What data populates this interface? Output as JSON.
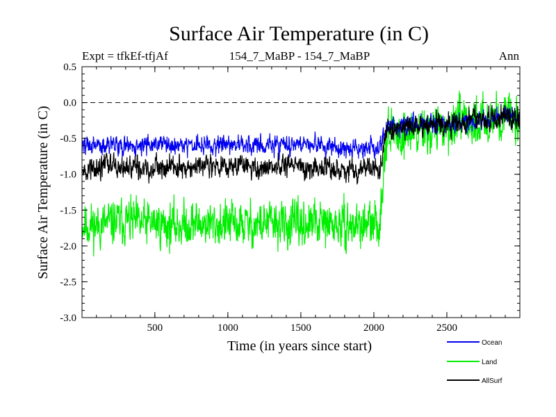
{
  "chart_data": {
    "type": "line",
    "title": "Surface Air Temperature (in C)",
    "subtitle_left": "Expt = tfkEf-tfjAf",
    "subtitle_center": "154_7_MaBP - 154_7_MaBP",
    "subtitle_right": "Ann",
    "xlabel": "Time (in years since start)",
    "ylabel": "Surface Air Temperature (in C)",
    "xlim": [
      1,
      3000
    ],
    "ylim": [
      -3.0,
      0.5
    ],
    "x_ticks": [
      500,
      1000,
      1500,
      2000,
      2500
    ],
    "x_tick_labels": [
      "500",
      "1000",
      "1500",
      "2000",
      "2500"
    ],
    "y_ticks": [
      0.5,
      0.0,
      -0.5,
      -1.0,
      -1.5,
      -2.0,
      -2.5,
      -3.0
    ],
    "y_tick_labels": [
      "0.5",
      "0.0",
      "-0.5",
      "-1.0",
      "-1.5",
      "-2.0",
      "-2.5",
      "-3.0"
    ],
    "reference_line_y": 0.0,
    "legend_position": "bottom-right",
    "series": [
      {
        "name": "Land",
        "color": "#00ee00",
        "x": [
          1,
          100,
          200,
          300,
          400,
          500,
          600,
          700,
          800,
          900,
          1000,
          1100,
          1200,
          1300,
          1400,
          1500,
          1600,
          1700,
          1800,
          1900,
          2000,
          2040,
          2060,
          2080,
          2100,
          2200,
          2300,
          2400,
          2500,
          2600,
          2700,
          2800,
          2900,
          3000
        ],
        "values": [
          -1.7,
          -1.72,
          -1.68,
          -1.65,
          -1.7,
          -1.68,
          -1.72,
          -1.7,
          -1.68,
          -1.7,
          -1.69,
          -1.71,
          -1.7,
          -1.68,
          -1.72,
          -1.7,
          -1.69,
          -1.71,
          -1.73,
          -1.7,
          -1.72,
          -1.7,
          -1.1,
          -0.5,
          -0.45,
          -0.45,
          -0.4,
          -0.38,
          -0.35,
          -0.3,
          -0.28,
          -0.22,
          -0.2,
          -0.25
        ],
        "noise_amplitude": 0.3
      },
      {
        "name": "Ocean",
        "color": "#0000ee",
        "x": [
          1,
          100,
          200,
          300,
          400,
          500,
          600,
          700,
          800,
          900,
          1000,
          1100,
          1200,
          1300,
          1400,
          1500,
          1600,
          1700,
          1800,
          1900,
          2000,
          2040,
          2060,
          2080,
          2100,
          2200,
          2300,
          2400,
          2500,
          2600,
          2700,
          2800,
          2900,
          3000
        ],
        "values": [
          -0.62,
          -0.6,
          -0.58,
          -0.6,
          -0.61,
          -0.6,
          -0.59,
          -0.6,
          -0.58,
          -0.61,
          -0.6,
          -0.59,
          -0.61,
          -0.6,
          -0.58,
          -0.6,
          -0.61,
          -0.62,
          -0.64,
          -0.63,
          -0.65,
          -0.64,
          -0.5,
          -0.36,
          -0.35,
          -0.33,
          -0.3,
          -0.29,
          -0.28,
          -0.26,
          -0.24,
          -0.22,
          -0.2,
          -0.22
        ],
        "noise_amplitude": 0.13
      },
      {
        "name": "AllSurf",
        "color": "#000000",
        "x": [
          1,
          100,
          200,
          300,
          400,
          500,
          600,
          700,
          800,
          900,
          1000,
          1100,
          1200,
          1300,
          1400,
          1500,
          1600,
          1700,
          1800,
          1900,
          2000,
          2040,
          2060,
          2080,
          2100,
          2200,
          2300,
          2400,
          2500,
          2600,
          2700,
          2800,
          2900,
          3000
        ],
        "values": [
          -0.92,
          -0.9,
          -0.88,
          -0.9,
          -0.91,
          -0.9,
          -0.89,
          -0.9,
          -0.88,
          -0.91,
          -0.9,
          -0.89,
          -0.91,
          -0.92,
          -0.9,
          -0.91,
          -0.92,
          -0.93,
          -0.95,
          -0.94,
          -0.96,
          -0.95,
          -0.7,
          -0.4,
          -0.38,
          -0.36,
          -0.33,
          -0.31,
          -0.3,
          -0.27,
          -0.25,
          -0.22,
          -0.2,
          -0.23
        ],
        "noise_amplitude": 0.15
      }
    ]
  },
  "legend": {
    "ocean_label": "Ocean",
    "land_label": "Land",
    "allsurf_label": "AllSurf"
  }
}
